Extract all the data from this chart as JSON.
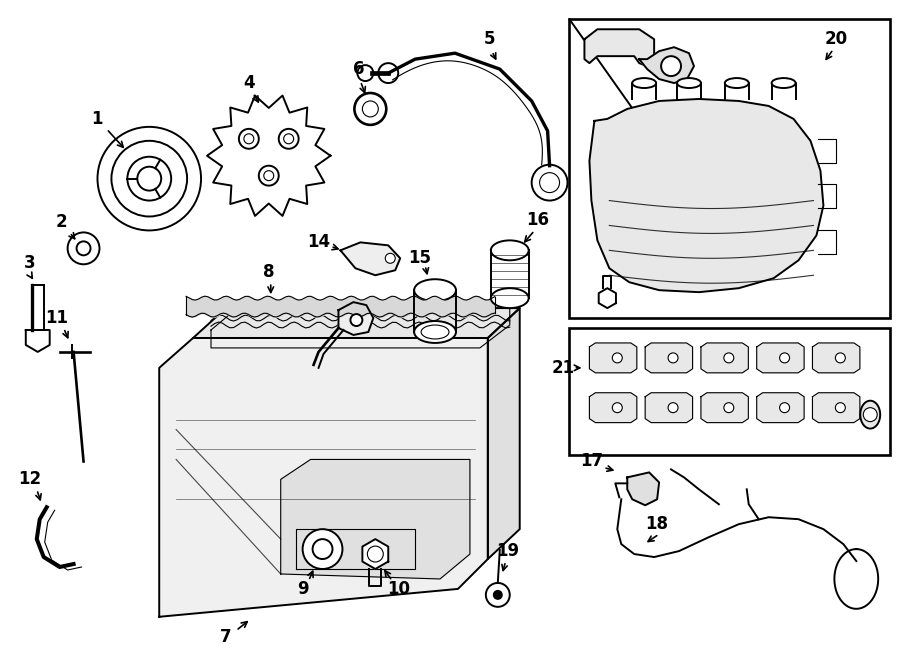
{
  "bg_color": "#ffffff",
  "line_color": "#000000",
  "fig_width": 9.0,
  "fig_height": 6.61,
  "lw_main": 1.4,
  "lw_thin": 0.8,
  "label_fs": 12
}
